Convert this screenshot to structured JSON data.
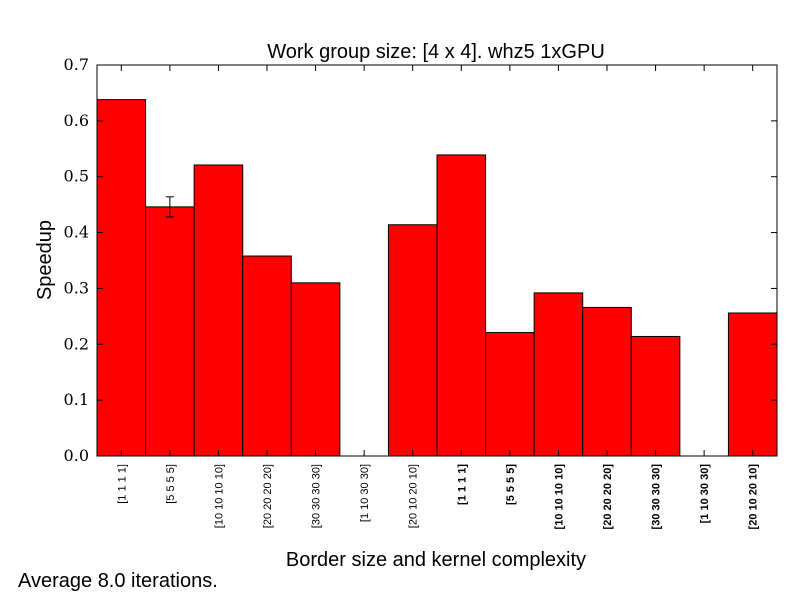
{
  "chart_data": {
    "type": "bar",
    "title": "Work group size: [4 x 4]. whz5 1xGPU",
    "xlabel": "Border size and kernel complexity",
    "ylabel": "Speedup",
    "ylim": [
      0,
      0.7
    ],
    "yticks": [
      "0.0",
      "0.1",
      "0.2",
      "0.3",
      "0.4",
      "0.5",
      "0.6",
      "0.7"
    ],
    "categories": [
      "[1 1 1 1]",
      "[5 5 5 5]",
      "[10 10 10 10]",
      "[20 20 20 20]",
      "[30 30 30 30]",
      "[1 10 30 30]",
      "[20 10 20 10]",
      "[1 1 1 1]",
      "[5 5 5 5]",
      "[10 10 10 10]",
      "[20 20 20 20]",
      "[30 30 30 30]",
      "[1 10 30 30]",
      "[20 10 20 10]"
    ],
    "category_bold": [
      false,
      false,
      false,
      false,
      false,
      false,
      false,
      true,
      true,
      true,
      true,
      true,
      true,
      true
    ],
    "values": [
      0.638,
      0.446,
      0.521,
      0.358,
      0.31,
      0.0,
      0.414,
      0.539,
      0.221,
      0.292,
      0.266,
      0.214,
      0.0,
      0.256
    ],
    "errors": [
      0,
      0.018,
      0,
      0,
      0,
      0,
      0,
      0,
      0,
      0,
      0,
      0,
      0,
      0
    ],
    "bar_color": "#ff0000",
    "grid": false
  },
  "footnote": "Average 8.0 iterations."
}
